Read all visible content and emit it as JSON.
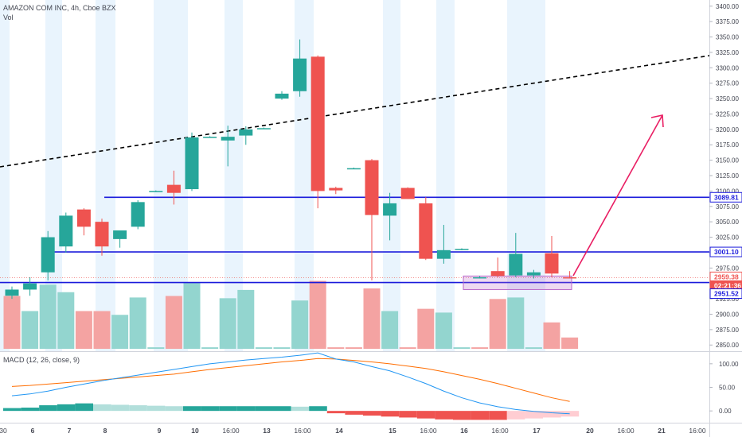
{
  "header": {
    "symbol_line": "AMAZON COM INC, 4h, Cboe BZX",
    "volume_label": "Vol"
  },
  "macd_panel": {
    "label": "MACD (12, 26, close, 9)"
  },
  "price_axis": {
    "ticks": [
      "3400.00",
      "3375.00",
      "3350.00",
      "3325.00",
      "3300.00",
      "3275.00",
      "3250.00",
      "3225.00",
      "3200.00",
      "3175.00",
      "3150.00",
      "3125.00",
      "3100.00",
      "3075.00",
      "3050.00",
      "3025.00",
      "3000.00",
      "2975.00",
      "2950.00",
      "2925.00",
      "2900.00",
      "2875.00",
      "2850.00"
    ],
    "markers": [
      {
        "label": "3089.81",
        "value": 3089.81,
        "color": "#1a1adb"
      },
      {
        "label": "3001.10",
        "value": 3001.1,
        "color": "#1a1adb"
      },
      {
        "label": "2959.38",
        "value": 2959.38,
        "color": "#ef5350"
      },
      {
        "label": "02:21:36",
        "value": 2959.38,
        "color": "#ef5350"
      },
      {
        "label": "2951.52",
        "value": 2951.52,
        "color": "#1a1adb"
      }
    ]
  },
  "macd_axis": {
    "ticks": [
      "100.00",
      "50.00",
      "0.00"
    ]
  },
  "time_axis": [
    {
      "label": "30",
      "x": 4
    },
    {
      "label": "6",
      "x": 41
    },
    {
      "label": "7",
      "x": 87
    },
    {
      "label": "8",
      "x": 132
    },
    {
      "label": "9",
      "x": 200
    },
    {
      "label": "10",
      "x": 245
    },
    {
      "label": "16:00",
      "x": 290
    },
    {
      "label": "13",
      "x": 335
    },
    {
      "label": "16:00",
      "x": 380
    },
    {
      "label": "14",
      "x": 426
    },
    {
      "label": "15",
      "x": 493
    },
    {
      "label": "16:00",
      "x": 538
    },
    {
      "label": "16",
      "x": 583
    },
    {
      "label": "16:00",
      "x": 628
    },
    {
      "label": "17",
      "x": 674
    },
    {
      "label": "20",
      "x": 741
    },
    {
      "label": "16:00",
      "x": 786
    },
    {
      "label": "21",
      "x": 831
    },
    {
      "label": "16:00",
      "x": 876
    }
  ],
  "colors": {
    "up": "#26a69a",
    "down": "#ef5350",
    "level": "#1a1adb",
    "arrow": "#e91e63",
    "macd": "#2196f3",
    "signal": "#ff6d00"
  },
  "chart_data": {
    "type": "candlestick",
    "title": "AMAZON COM INC, 4h, Cboe BZX",
    "ylim": [
      2840,
      3410
    ],
    "candles": [
      {
        "o": 2930,
        "h": 2945,
        "l": 2925,
        "c": 2940
      },
      {
        "o": 2940,
        "h": 2960,
        "l": 2930,
        "c": 2950
      },
      {
        "o": 2968,
        "h": 3035,
        "l": 2955,
        "c": 3025
      },
      {
        "o": 3010,
        "h": 3065,
        "l": 3000,
        "c": 3060
      },
      {
        "o": 3070,
        "h": 3072,
        "l": 3028,
        "c": 3042
      },
      {
        "o": 3050,
        "h": 3055,
        "l": 2995,
        "c": 3010
      },
      {
        "o": 3022,
        "h": 3032,
        "l": 3008,
        "c": 3036
      },
      {
        "o": 3042,
        "h": 3085,
        "l": 3038,
        "c": 3082
      },
      {
        "o": 3100,
        "h": 3101,
        "l": 3099,
        "c": 3100
      },
      {
        "o": 3110,
        "h": 3133,
        "l": 3078,
        "c": 3097
      },
      {
        "o": 3103,
        "h": 3195,
        "l": 3100,
        "c": 3187
      },
      {
        "o": 3188,
        "h": 3189,
        "l": 3187,
        "c": 3188
      },
      {
        "o": 3182,
        "h": 3206,
        "l": 3140,
        "c": 3188
      },
      {
        "o": 3190,
        "h": 3205,
        "l": 3175,
        "c": 3200
      },
      {
        "o": 3202,
        "h": 3203,
        "l": 3201,
        "c": 3202
      },
      {
        "o": 3250,
        "h": 3262,
        "l": 3248,
        "c": 3258
      },
      {
        "o": 3262,
        "h": 3346,
        "l": 3253,
        "c": 3315
      },
      {
        "o": 3318,
        "h": 3320,
        "l": 3072,
        "c": 3100
      },
      {
        "o": 3105,
        "h": 3107,
        "l": 3095,
        "c": 3101
      },
      {
        "o": 3137,
        "h": 3138,
        "l": 3136,
        "c": 3137
      },
      {
        "o": 3150,
        "h": 3152,
        "l": 2955,
        "c": 3061
      },
      {
        "o": 3060,
        "h": 3097,
        "l": 3020,
        "c": 3080
      },
      {
        "o": 3105,
        "h": 3106,
        "l": 3087,
        "c": 3087
      },
      {
        "o": 3080,
        "h": 3090,
        "l": 2988,
        "c": 2990
      },
      {
        "o": 2990,
        "h": 3045,
        "l": 2982,
        "c": 3004
      },
      {
        "o": 3005,
        "h": 3007,
        "l": 3004,
        "c": 3006
      },
      {
        "o": 2960,
        "h": 2962,
        "l": 2958,
        "c": 2960
      },
      {
        "o": 2970,
        "h": 2992,
        "l": 2960,
        "c": 2962
      },
      {
        "o": 2963,
        "h": 3032,
        "l": 2960,
        "c": 2998
      },
      {
        "o": 2963,
        "h": 2972,
        "l": 2958,
        "c": 2968
      },
      {
        "o": 2999,
        "h": 3027,
        "l": 2960,
        "c": 2966
      },
      {
        "o": 2960,
        "h": 2970,
        "l": 2958,
        "c": 2959.38
      }
    ],
    "volume": [
      {
        "v": 0.7,
        "d": true
      },
      {
        "v": 0.5,
        "d": false
      },
      {
        "v": 0.85,
        "d": false
      },
      {
        "v": 0.75,
        "d": false
      },
      {
        "v": 0.5,
        "d": true
      },
      {
        "v": 0.5,
        "d": true
      },
      {
        "v": 0.45,
        "d": false
      },
      {
        "v": 0.68,
        "d": false
      },
      {
        "v": 0.02,
        "d": false
      },
      {
        "v": 0.7,
        "d": true
      },
      {
        "v": 0.88,
        "d": false
      },
      {
        "v": 0.02,
        "d": false
      },
      {
        "v": 0.67,
        "d": false
      },
      {
        "v": 0.78,
        "d": false
      },
      {
        "v": 0.02,
        "d": false
      },
      {
        "v": 0.02,
        "d": false
      },
      {
        "v": 0.64,
        "d": false
      },
      {
        "v": 0.9,
        "d": true
      },
      {
        "v": 0.02,
        "d": true
      },
      {
        "v": 0.02,
        "d": true
      },
      {
        "v": 0.8,
        "d": true
      },
      {
        "v": 0.5,
        "d": false
      },
      {
        "v": 0.02,
        "d": true
      },
      {
        "v": 0.53,
        "d": true
      },
      {
        "v": 0.48,
        "d": false
      },
      {
        "v": 0.02,
        "d": false
      },
      {
        "v": 0.02,
        "d": true
      },
      {
        "v": 0.66,
        "d": true
      },
      {
        "v": 0.68,
        "d": false
      },
      {
        "v": 0.02,
        "d": false
      },
      {
        "v": 0.35,
        "d": true
      },
      {
        "v": 0.15,
        "d": true
      }
    ],
    "macd_ylim": [
      -25,
      125
    ],
    "macd_line": [
      32,
      36,
      42,
      50,
      57,
      64,
      70,
      76,
      82,
      88,
      94,
      100,
      104,
      108,
      111,
      114,
      118,
      123,
      110,
      104,
      94,
      85,
      72,
      58,
      42,
      28,
      17,
      9,
      3,
      -1,
      -4,
      -6
    ],
    "signal_line": [
      52,
      54,
      57,
      60,
      63,
      66,
      69,
      72,
      75,
      78,
      83,
      88,
      92,
      96,
      100,
      104,
      107,
      111,
      110,
      107,
      104,
      100,
      95,
      90,
      83,
      75,
      67,
      58,
      48,
      38,
      28,
      20
    ],
    "histogram": [
      6,
      7,
      12,
      14,
      16,
      14,
      13,
      12,
      11,
      10,
      10,
      10,
      10,
      10,
      10,
      10,
      9,
      10,
      -5,
      -8,
      -10,
      -12,
      -14,
      -16,
      -18,
      -19,
      -19,
      -19,
      -18,
      -16,
      -14,
      -12
    ],
    "x_hidden": true
  }
}
